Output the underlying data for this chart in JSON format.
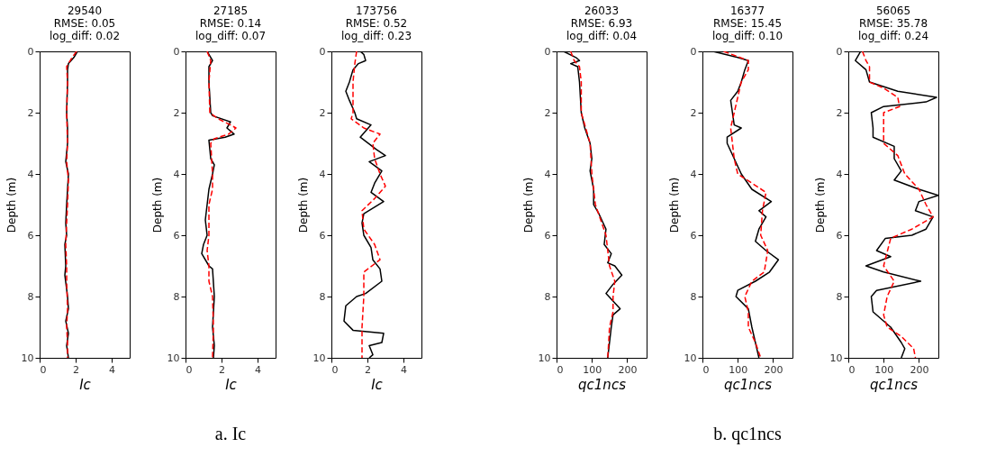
{
  "chart_data": [
    {
      "type": "line",
      "title": "29540\nRMSE: 0.05\nlog_diff: 0.02",
      "xlabel": "Ic",
      "ylabel": "Depth (m)",
      "xlim": [
        0,
        5
      ],
      "xticks": [
        0,
        2,
        4
      ],
      "ylim": [
        10,
        0
      ],
      "yticks": [
        0,
        2,
        4,
        6,
        8,
        10
      ],
      "grid": false,
      "series": [
        {
          "color": "#000000",
          "line_style": "solid",
          "x": [
            2.1,
            1.9,
            1.6,
            1.55,
            1.55,
            1.5,
            1.55,
            1.55,
            1.45,
            1.6,
            1.55,
            1.5,
            1.45,
            1.5,
            1.4,
            1.45,
            1.4,
            1.55,
            1.6,
            1.45,
            1.6,
            1.5,
            1.6
          ],
          "values": [
            0,
            0.2,
            0.4,
            0.6,
            1,
            2,
            2.5,
            3,
            3.6,
            4,
            4.5,
            5,
            5.6,
            6,
            6.3,
            7,
            7.3,
            8,
            8.4,
            8.8,
            9.2,
            9.6,
            10
          ]
        },
        {
          "color": "#ff0000",
          "line_style": "dashed",
          "x": [
            2.05,
            1.8,
            1.5,
            1.55,
            1.5,
            1.55,
            1.5,
            1.6,
            1.55,
            1.5,
            1.45,
            1.5,
            1.5,
            1.55,
            1.5,
            1.55,
            1.55
          ],
          "values": [
            0,
            0.2,
            0.5,
            1,
            2,
            3,
            3.6,
            4.2,
            5,
            5.6,
            6.3,
            7,
            7.5,
            8.4,
            9,
            9.5,
            10
          ]
        }
      ]
    },
    {
      "type": "line",
      "title": "27185\nRMSE: 0.14\nlog_diff: 0.07",
      "xlabel": "Ic",
      "ylabel": "Depth (m)",
      "xlim": [
        0,
        5
      ],
      "xticks": [
        0,
        2,
        4
      ],
      "ylim": [
        10,
        0
      ],
      "yticks": [
        0,
        2,
        4,
        6,
        8,
        10
      ],
      "grid": false,
      "annotations": [
        "a. Ic"
      ],
      "series": [
        {
          "color": "#000000",
          "line_style": "solid",
          "x": [
            1.2,
            1.5,
            1.3,
            1.3,
            1.4,
            1.5,
            2.5,
            2.3,
            2.5,
            2.7,
            2.2,
            1.3,
            1.4,
            1.6,
            1.5,
            1.3,
            1.2,
            1.1,
            1.2,
            1.0,
            0.9,
            1.3,
            1.5,
            1.6,
            1.5,
            1.6,
            1.55
          ],
          "values": [
            0,
            0.3,
            0.5,
            1,
            2,
            2.1,
            2.3,
            2.5,
            2.6,
            2.7,
            2.8,
            2.9,
            3.5,
            3.7,
            4,
            4.5,
            5,
            5.5,
            6,
            6.3,
            6.6,
            7,
            7.1,
            8,
            9,
            9.6,
            10
          ]
        },
        {
          "color": "#ff0000",
          "line_style": "dashed",
          "x": [
            1.2,
            1.4,
            1.3,
            1.35,
            1.8,
            2.5,
            2.8,
            2.4,
            1.6,
            1.4,
            1.5,
            1.5,
            1.3,
            1.3,
            1.2,
            1.3,
            1.3,
            1.5,
            1.55,
            1.5
          ],
          "values": [
            0,
            0.3,
            1,
            2,
            2.2,
            2.4,
            2.5,
            2.7,
            2.85,
            3,
            4,
            4.5,
            5,
            6,
            6.5,
            7,
            7.5,
            8,
            9,
            10
          ]
        }
      ]
    },
    {
      "type": "line",
      "title": "173756\nRMSE: 0.52\nlog_diff: 0.23",
      "xlabel": "Ic",
      "ylabel": "Depth (m)",
      "xlim": [
        0,
        5
      ],
      "xticks": [
        0,
        2,
        4
      ],
      "ylim": [
        10,
        0
      ],
      "yticks": [
        0,
        2,
        4,
        6,
        8,
        10
      ],
      "grid": false,
      "series": [
        {
          "color": "#000000",
          "line_style": "solid",
          "x": [
            1.6,
            1.8,
            1.9,
            1.5,
            1.2,
            1.0,
            0.8,
            1.0,
            1.3,
            1.4,
            2.2,
            1.6,
            2.5,
            3.0,
            2.1,
            2.8,
            2.4,
            2.2,
            2.9,
            1.8,
            1.7,
            1.8,
            2.2,
            2.3,
            2.7,
            2.8,
            1.9,
            1.4,
            0.8,
            0.7,
            1.2,
            2.9,
            2.8,
            2.1,
            2.3,
            2.1
          ],
          "values": [
            0,
            0.1,
            0.3,
            0.4,
            0.6,
            1,
            1.3,
            1.6,
            2,
            2.2,
            2.4,
            2.8,
            3.2,
            3.4,
            3.6,
            3.9,
            4.3,
            4.6,
            4.9,
            5.3,
            5.6,
            6,
            6.4,
            6.8,
            7.1,
            7.5,
            7.9,
            8,
            8.3,
            8.8,
            9.1,
            9.2,
            9.5,
            9.6,
            9.9,
            10
          ]
        },
        {
          "color": "#ff0000",
          "line_style": "dashed",
          "x": [
            1.4,
            1.3,
            1.2,
            1.2,
            1.1,
            1.8,
            2.7,
            2.3,
            2.4,
            2.7,
            3.0,
            2.4,
            1.7,
            1.8,
            2.4,
            2.7,
            1.8,
            1.8,
            1.7,
            1.7
          ],
          "values": [
            0,
            0.4,
            1,
            2,
            2.2,
            2.5,
            2.7,
            3,
            3.5,
            4,
            4.4,
            4.8,
            5.2,
            5.8,
            6.3,
            6.8,
            7.2,
            8,
            9,
            10
          ]
        }
      ]
    },
    {
      "type": "line",
      "title": "26033\nRMSE: 6.93\nlog_diff: 0.04",
      "xlabel": "qc1ncs",
      "ylabel": "Depth (m)",
      "xlim": [
        0,
        255
      ],
      "xticks": [
        0,
        100,
        200
      ],
      "ylim": [
        10,
        0
      ],
      "yticks": [
        0,
        2,
        4,
        6,
        8,
        10
      ],
      "grid": false,
      "series": [
        {
          "color": "#000000",
          "line_style": "solid",
          "x": [
            20,
            55,
            65,
            40,
            60,
            65,
            70,
            80,
            95,
            100,
            95,
            105,
            105,
            120,
            140,
            135,
            155,
            145,
            165,
            185,
            160,
            140,
            180,
            160,
            155,
            145
          ],
          "values": [
            0,
            0.2,
            0.3,
            0.4,
            0.5,
            1,
            2,
            2.5,
            3,
            3.5,
            3.9,
            4.5,
            5,
            5.3,
            5.8,
            6.3,
            6.6,
            6.9,
            7,
            7.3,
            7.6,
            7.9,
            8.4,
            8.6,
            9,
            10
          ]
        },
        {
          "color": "#ff0000",
          "line_style": "dashed",
          "x": [
            40,
            50,
            65,
            70,
            70,
            95,
            100,
            110,
            125,
            140,
            150,
            165,
            160,
            160,
            150,
            145
          ],
          "values": [
            0,
            0.3,
            0.5,
            1,
            2,
            3,
            4,
            5,
            5.5,
            6,
            7,
            7.5,
            8,
            8.5,
            9,
            10
          ]
        }
      ]
    },
    {
      "type": "line",
      "title": "16377\nRMSE: 15.45\nlog_diff: 0.10",
      "xlabel": "qc1ncs",
      "ylabel": "Depth (m)",
      "xlim": [
        0,
        255
      ],
      "xticks": [
        0,
        100,
        200
      ],
      "ylim": [
        10,
        0
      ],
      "yticks": [
        0,
        2,
        4,
        6,
        8,
        10
      ],
      "grid": false,
      "annotations": [
        "b. qc1ncs"
      ],
      "series": [
        {
          "color": "#000000",
          "line_style": "solid",
          "x": [
            30,
            100,
            130,
            120,
            110,
            100,
            80,
            85,
            90,
            110,
            70,
            70,
            90,
            110,
            140,
            195,
            160,
            180,
            160,
            150,
            180,
            215,
            190,
            150,
            100,
            95,
            130,
            140,
            150,
            160
          ],
          "values": [
            0,
            0.2,
            0.3,
            0.6,
            1,
            1.3,
            1.6,
            2,
            2.4,
            2.5,
            2.8,
            3,
            3.5,
            4,
            4.5,
            4.9,
            5.2,
            5.4,
            5.8,
            6.2,
            6.5,
            6.8,
            7.2,
            7.5,
            7.8,
            8,
            8.4,
            9,
            9.5,
            10
          ]
        },
        {
          "color": "#ff0000",
          "line_style": "dashed",
          "x": [
            60,
            130,
            130,
            110,
            100,
            90,
            80,
            85,
            90,
            100,
            140,
            180,
            170,
            165,
            185,
            175,
            140,
            120,
            130,
            130,
            150,
            165
          ],
          "values": [
            0,
            0.3,
            0.6,
            1,
            1.5,
            2,
            2.5,
            3,
            3.5,
            4,
            4.3,
            4.6,
            5.2,
            6,
            6.5,
            7.2,
            7.5,
            8,
            8.5,
            9,
            9.5,
            10
          ]
        }
      ]
    },
    {
      "type": "line",
      "title": "56065\nRMSE: 35.78\nlog_diff: 0.24",
      "xlabel": "qc1ncs",
      "ylabel": "Depth (m)",
      "xlim": [
        0,
        255
      ],
      "xticks": [
        0,
        100,
        200
      ],
      "ylim": [
        10,
        0
      ],
      "yticks": [
        0,
        2,
        4,
        6,
        8,
        10
      ],
      "grid": false,
      "series": [
        {
          "color": "#000000",
          "line_style": "solid",
          "x": [
            35,
            20,
            50,
            60,
            140,
            250,
            220,
            100,
            65,
            70,
            70,
            130,
            130,
            150,
            130,
            200,
            255,
            200,
            190,
            240,
            220,
            180,
            105,
            80,
            120,
            50,
            100,
            205,
            80,
            65,
            70,
            120,
            150,
            160,
            150
          ],
          "values": [
            0,
            0.3,
            0.6,
            1,
            1.3,
            1.5,
            1.65,
            1.8,
            2,
            2.5,
            2.8,
            3.1,
            3.5,
            3.9,
            4.2,
            4.5,
            4.7,
            4.9,
            5.2,
            5.4,
            5.8,
            6,
            6.1,
            6.5,
            6.7,
            7,
            7.2,
            7.5,
            7.8,
            8,
            8.5,
            9,
            9.5,
            9.7,
            10
          ]
        },
        {
          "color": "#ff0000",
          "line_style": "dashed",
          "x": [
            40,
            50,
            60,
            60,
            100,
            140,
            145,
            100,
            100,
            140,
            160,
            200,
            220,
            240,
            180,
            120,
            100,
            130,
            110,
            100,
            110,
            150,
            185,
            190
          ],
          "values": [
            0,
            0.3,
            0.5,
            1,
            1.2,
            1.5,
            1.8,
            2,
            3,
            3.4,
            4,
            4.5,
            5,
            5.4,
            5.8,
            6.1,
            7,
            7.5,
            8,
            8.6,
            9,
            9.3,
            9.7,
            10
          ]
        }
      ]
    }
  ]
}
